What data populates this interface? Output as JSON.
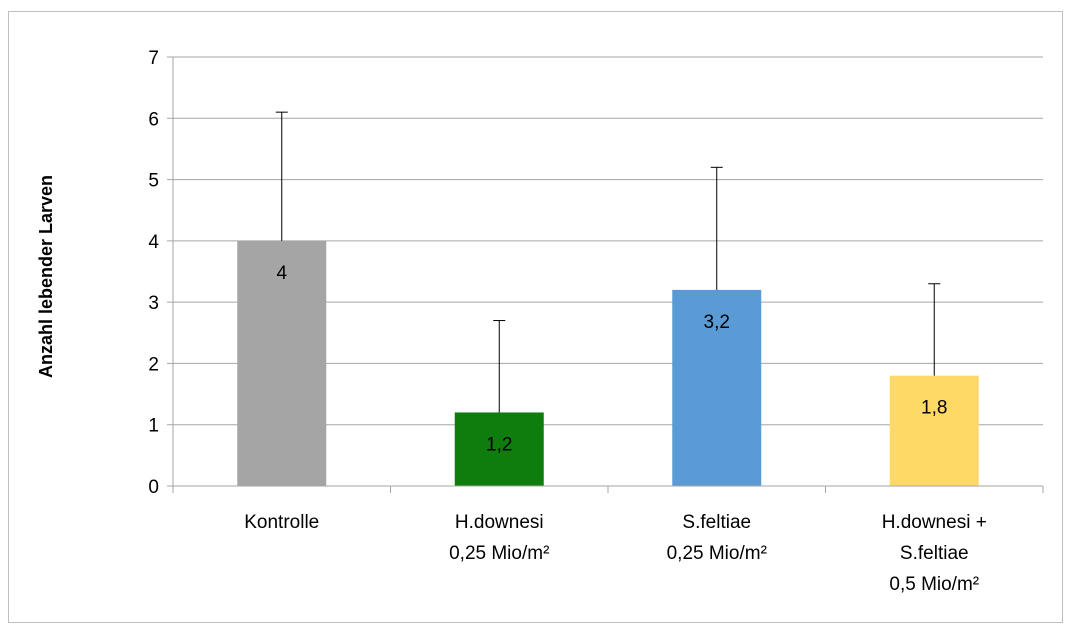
{
  "chart_data": {
    "type": "bar",
    "categories": [
      [
        "Kontrolle"
      ],
      [
        "H.downesi",
        "0,25 Mio/m²"
      ],
      [
        "S.feltiae",
        "0,25 Mio/m²"
      ],
      [
        "H.downesi +",
        "S.feltiae",
        "0,5 Mio/m²"
      ]
    ],
    "values": [
      4,
      1.2,
      3.2,
      1.8
    ],
    "value_labels": [
      "4",
      "1,2",
      "3,2",
      "1,8"
    ],
    "error_upper": [
      6.1,
      2.7,
      5.2,
      3.3
    ],
    "colors": [
      "#a5a5a5",
      "#0e7d0e",
      "#5b9bd5",
      "#ffd966"
    ],
    "title": "",
    "xlabel": "",
    "ylabel": "Anzahl lebender Larven",
    "ylim": [
      0,
      7
    ],
    "yticks": [
      0,
      1,
      2,
      3,
      4,
      5,
      6,
      7
    ],
    "grid": true,
    "legend": "none"
  }
}
